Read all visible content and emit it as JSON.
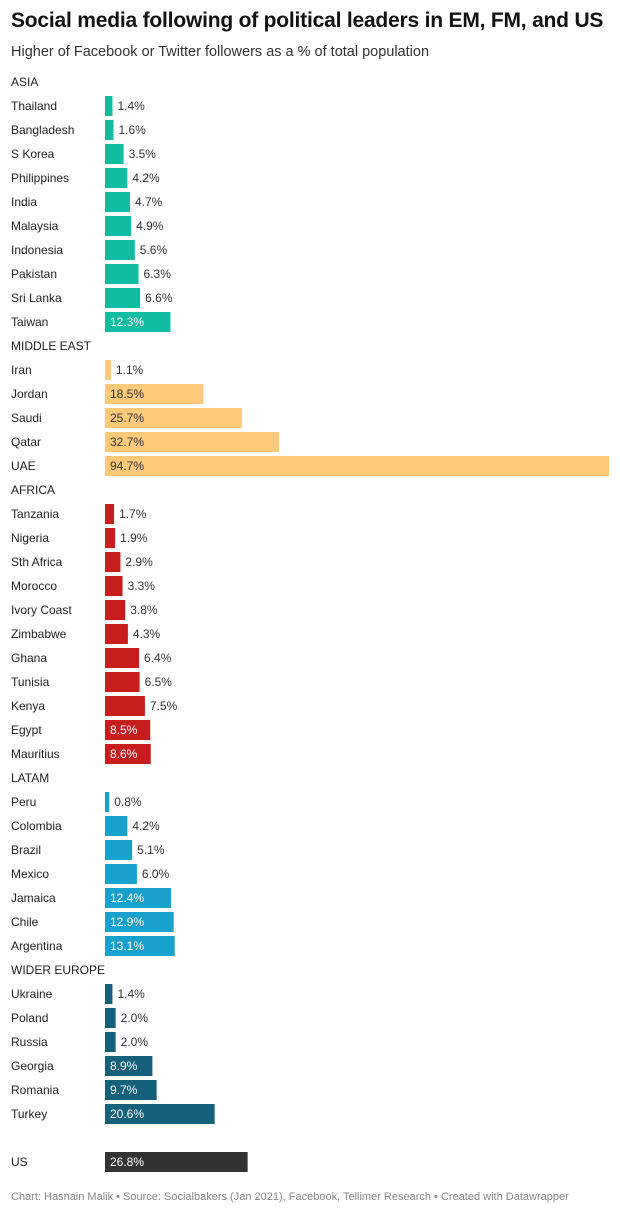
{
  "title": "Social media following of political leaders in EM, FM, and US",
  "subtitle": "Higher of Facebook or Twitter followers as a % of total population",
  "footer": "Chart: Hasnain Malik • Source: Socialbakers (Jan 2021), Facebook, Tellimer Research • Created with Datawrapper",
  "chart_data": {
    "type": "bar",
    "orientation": "horizontal",
    "unit": "%",
    "xlim": [
      0,
      94.7
    ],
    "grid": false,
    "legend": "none",
    "groups": [
      {
        "name": "ASIA",
        "color": "#10bda0",
        "items": [
          {
            "label": "Thailand",
            "value": 1.4,
            "value_label": "1.4%"
          },
          {
            "label": "Bangladesh",
            "value": 1.6,
            "value_label": "1.6%"
          },
          {
            "label": "S Korea",
            "value": 3.5,
            "value_label": "3.5%"
          },
          {
            "label": "Philippines",
            "value": 4.2,
            "value_label": "4.2%"
          },
          {
            "label": "India",
            "value": 4.7,
            "value_label": "4.7%"
          },
          {
            "label": "Malaysia",
            "value": 4.9,
            "value_label": "4.9%"
          },
          {
            "label": "Indonesia",
            "value": 5.6,
            "value_label": "5.6%"
          },
          {
            "label": "Pakistan",
            "value": 6.3,
            "value_label": "6.3%"
          },
          {
            "label": "Sri Lanka",
            "value": 6.6,
            "value_label": "6.6%"
          },
          {
            "label": "Taiwan",
            "value": 12.3,
            "value_label": "12.3%"
          }
        ]
      },
      {
        "name": "MIDDLE EAST",
        "color": "#fec978",
        "items": [
          {
            "label": "Iran",
            "value": 1.1,
            "value_label": "1.1%"
          },
          {
            "label": "Jordan",
            "value": 18.5,
            "value_label": "18.5%"
          },
          {
            "label": "Saudi",
            "value": 25.7,
            "value_label": "25.7%"
          },
          {
            "label": "Qatar",
            "value": 32.7,
            "value_label": "32.7%"
          },
          {
            "label": "UAE",
            "value": 94.7,
            "value_label": "94.7%"
          }
        ]
      },
      {
        "name": "AFRICA",
        "color": "#c71e1d",
        "items": [
          {
            "label": "Tanzania",
            "value": 1.7,
            "value_label": "1.7%"
          },
          {
            "label": "Nigeria",
            "value": 1.9,
            "value_label": "1.9%"
          },
          {
            "label": "Sth Africa",
            "value": 2.9,
            "value_label": "2.9%"
          },
          {
            "label": "Morocco",
            "value": 3.3,
            "value_label": "3.3%"
          },
          {
            "label": "Ivory Coast",
            "value": 3.8,
            "value_label": "3.8%"
          },
          {
            "label": "Zimbabwe",
            "value": 4.3,
            "value_label": "4.3%"
          },
          {
            "label": "Ghana",
            "value": 6.4,
            "value_label": "6.4%"
          },
          {
            "label": "Tunisia",
            "value": 6.5,
            "value_label": "6.5%"
          },
          {
            "label": "Kenya",
            "value": 7.5,
            "value_label": "7.5%"
          },
          {
            "label": "Egypt",
            "value": 8.5,
            "value_label": "8.5%"
          },
          {
            "label": "Mauritius",
            "value": 8.6,
            "value_label": "8.6%"
          }
        ]
      },
      {
        "name": "LATAM",
        "color": "#18a1cd",
        "items": [
          {
            "label": "Peru",
            "value": 0.8,
            "value_label": "0.8%"
          },
          {
            "label": "Colombia",
            "value": 4.2,
            "value_label": "4.2%"
          },
          {
            "label": "Brazil",
            "value": 5.1,
            "value_label": "5.1%"
          },
          {
            "label": "Mexico",
            "value": 6.0,
            "value_label": "6.0%"
          },
          {
            "label": "Jamaica",
            "value": 12.4,
            "value_label": "12.4%"
          },
          {
            "label": "Chile",
            "value": 12.9,
            "value_label": "12.9%"
          },
          {
            "label": "Argentina",
            "value": 13.1,
            "value_label": "13.1%"
          }
        ]
      },
      {
        "name": "WIDER EUROPE",
        "color": "#15607a",
        "items": [
          {
            "label": "Ukraine",
            "value": 1.4,
            "value_label": "1.4%"
          },
          {
            "label": "Poland",
            "value": 2.0,
            "value_label": "2.0%"
          },
          {
            "label": "Russia",
            "value": 2.0,
            "value_label": "2.0%"
          },
          {
            "label": "Georgia",
            "value": 8.9,
            "value_label": "8.9%"
          },
          {
            "label": "Romania",
            "value": 9.7,
            "value_label": "9.7%"
          },
          {
            "label": "Turkey",
            "value": 20.6,
            "value_label": "20.6%"
          }
        ]
      },
      {
        "name": "",
        "color": "#333333",
        "items": [
          {
            "label": "US",
            "value": 26.8,
            "value_label": "26.8%"
          }
        ]
      }
    ]
  }
}
